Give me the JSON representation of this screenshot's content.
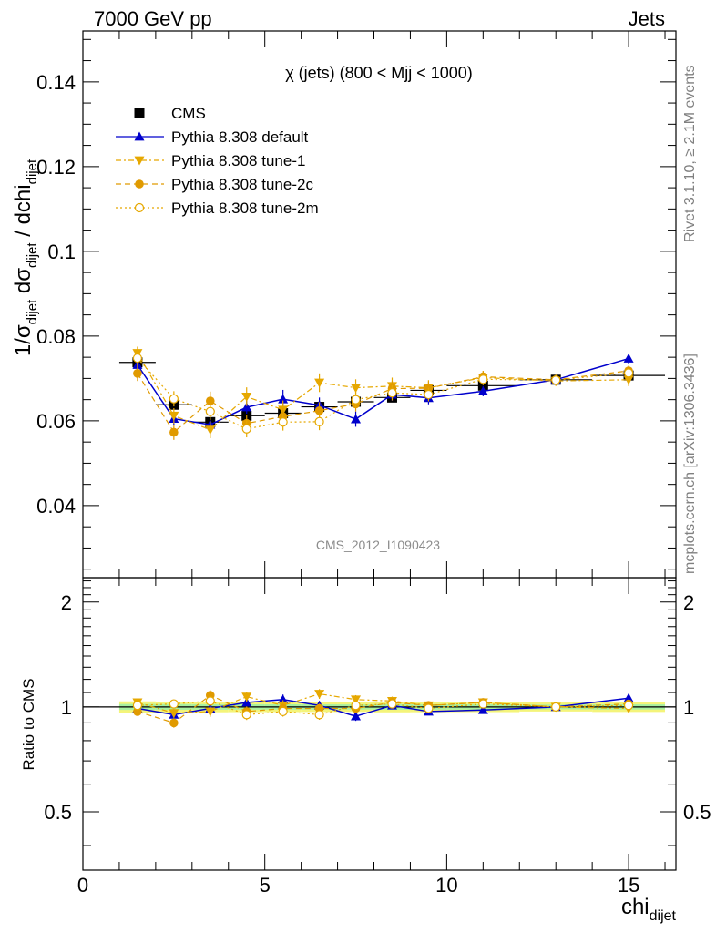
{
  "header": {
    "energy_label": "7000 GeV pp",
    "category_label": "Jets"
  },
  "side": {
    "rivet_label": "Rivet 3.1.10, ≥ 2.1M events",
    "site_label": "mcplots.cern.ch [arXiv:1306.3436]"
  },
  "plot": {
    "title": "χ (jets) (800 < Mjj < 1000)",
    "watermark": "CMS_2012_I1090423"
  },
  "chart_data": [
    {
      "type": "scatter",
      "panel": "main",
      "title": "χ (jets) (800 < Mjj < 1000)",
      "xlabel": "chi_dijet",
      "ylabel": "1/σ_dijet dσ_dijet / dchi_dijet",
      "xlim": [
        0,
        16.3
      ],
      "ylim": [
        0.023,
        0.152
      ],
      "x_ticks": [
        0,
        5,
        10,
        15
      ],
      "y_ticks": [
        0.04,
        0.06,
        0.08,
        0.1,
        0.12,
        0.14
      ],
      "x": [
        1.5,
        2.5,
        3.5,
        4.5,
        5.5,
        6.5,
        7.5,
        8.5,
        9.5,
        11,
        13,
        15
      ],
      "bin_edges": [
        1,
        2,
        3,
        4,
        5,
        6,
        7,
        8,
        9,
        10,
        12,
        14,
        16
      ],
      "legend_position": "top-left",
      "series": [
        {
          "name": "CMS",
          "color": "#000000",
          "marker": "square-filled",
          "values": [
            0.0738,
            0.0638,
            0.0597,
            0.0612,
            0.0618,
            0.0633,
            0.0645,
            0.0655,
            0.0672,
            0.0683,
            0.0697,
            0.0707
          ],
          "errors": [
            0.0012,
            0.001,
            0.0009,
            0.0009,
            0.0009,
            0.0009,
            0.0009,
            0.001,
            0.001,
            0.001,
            0.0009,
            0.001
          ]
        },
        {
          "name": "Pythia 8.308 default",
          "color": "#0000cc",
          "marker": "triangle-up-filled",
          "line": "solid",
          "values": [
            0.0732,
            0.0605,
            0.0591,
            0.0632,
            0.0651,
            0.0637,
            0.0604,
            0.0662,
            0.0654,
            0.067,
            0.0697,
            0.0747
          ],
          "errors": [
            0.0015,
            0.0015,
            0.0015,
            0.0015,
            0.0022,
            0.0018,
            0.0018,
            0.0015,
            0.0015,
            0.0012,
            0.001,
            0.0012
          ]
        },
        {
          "name": "Pythia 8.308 tune-1",
          "color": "#e6a800",
          "marker": "triangle-down-filled",
          "line": "dash-dot",
          "values": [
            0.076,
            0.0612,
            0.0579,
            0.0657,
            0.0626,
            0.069,
            0.0678,
            0.0682,
            0.0678,
            0.0702,
            0.0694,
            0.0697
          ],
          "errors": [
            0.0015,
            0.0018,
            0.002,
            0.0022,
            0.0022,
            0.0022,
            0.002,
            0.002,
            0.0018,
            0.0015,
            0.0012,
            0.0015
          ]
        },
        {
          "name": "Pythia 8.308 tune-2c",
          "color": "#e09a00",
          "marker": "circle-filled",
          "line": "dashed",
          "values": [
            0.0712,
            0.0573,
            0.0647,
            0.0594,
            0.061,
            0.0624,
            0.064,
            0.0676,
            0.0677,
            0.0704,
            0.0697,
            0.0718
          ],
          "errors": [
            0.0018,
            0.0018,
            0.0022,
            0.002,
            0.002,
            0.002,
            0.0018,
            0.0018,
            0.0016,
            0.0014,
            0.0012,
            0.0012
          ]
        },
        {
          "name": "Pythia 8.308 tune-2m",
          "color": "#e6a800",
          "marker": "circle-open",
          "line": "dotted",
          "values": [
            0.0748,
            0.0652,
            0.0622,
            0.0581,
            0.0597,
            0.0598,
            0.065,
            0.0666,
            0.0662,
            0.0698,
            0.0696,
            0.0713
          ],
          "errors": [
            0.0018,
            0.0018,
            0.002,
            0.002,
            0.002,
            0.002,
            0.0018,
            0.0018,
            0.0016,
            0.0014,
            0.0012,
            0.0012
          ]
        }
      ]
    },
    {
      "type": "scatter",
      "panel": "ratio",
      "xlabel": "chi_dijet",
      "ylabel": "Ratio to CMS",
      "xlim": [
        0,
        16.3
      ],
      "ylim": [
        0.34,
        2.35
      ],
      "y_scale": "log",
      "y_ticks": [
        0.5,
        1,
        2
      ],
      "x_ticks": [
        0,
        5,
        10,
        15
      ],
      "x": [
        1.5,
        2.5,
        3.5,
        4.5,
        5.5,
        6.5,
        7.5,
        8.5,
        9.5,
        11,
        13,
        15
      ],
      "reference_band": {
        "inner_color": "#a8f0a0",
        "outer_color": "#f4f47a"
      },
      "series": [
        {
          "name": "Pythia 8.308 default",
          "values": [
            0.99,
            0.95,
            0.99,
            1.03,
            1.05,
            1.01,
            0.94,
            1.01,
            0.97,
            0.98,
            1.0,
            1.06
          ]
        },
        {
          "name": "Pythia 8.308 tune-1",
          "values": [
            1.03,
            0.96,
            0.97,
            1.07,
            1.01,
            1.09,
            1.05,
            1.04,
            1.01,
            1.03,
            1.0,
            0.99
          ]
        },
        {
          "name": "Pythia 8.308 tune-2c",
          "values": [
            0.97,
            0.9,
            1.08,
            0.97,
            0.99,
            0.99,
            0.99,
            1.03,
            1.01,
            1.03,
            1.0,
            1.02
          ]
        },
        {
          "name": "Pythia 8.308 tune-2m",
          "values": [
            1.01,
            1.02,
            1.04,
            0.95,
            0.97,
            0.95,
            1.01,
            1.02,
            0.99,
            1.02,
            1.0,
            1.01
          ]
        }
      ]
    }
  ]
}
